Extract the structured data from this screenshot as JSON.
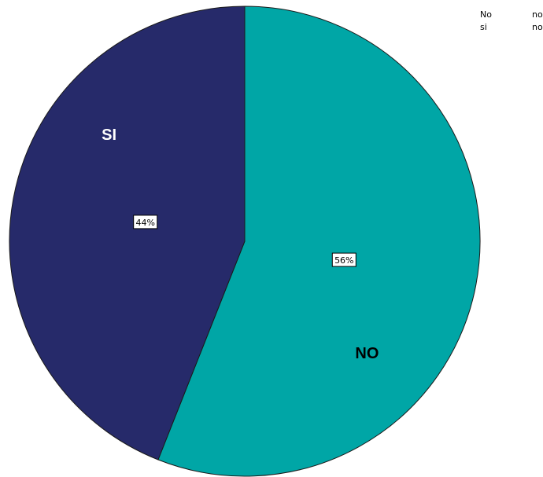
{
  "chart_data": {
    "type": "pie",
    "slices": [
      {
        "key": "no",
        "label": "NO",
        "percent_label": "56%",
        "value": 56,
        "color": "#00a6a6",
        "label_color": "#000000"
      },
      {
        "key": "si",
        "label": "SI",
        "percent_label": "44%",
        "value": 44,
        "color": "#262a6a",
        "label_color": "#ffffff"
      }
    ],
    "start_angle_deg": 0,
    "direction": "clockwise",
    "legend": {
      "placement": "top-right",
      "entries": [
        {
          "label": "No",
          "swatch_text": "no"
        },
        {
          "label": "si",
          "swatch_text": "no"
        }
      ]
    }
  }
}
